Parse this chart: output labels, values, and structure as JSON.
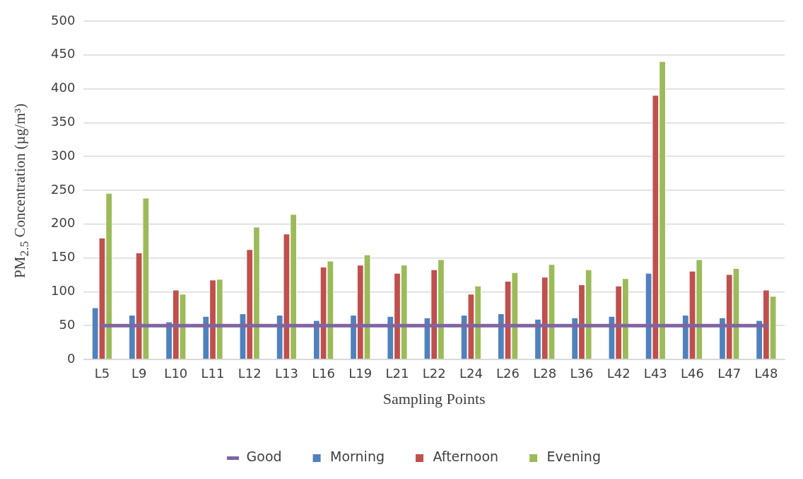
{
  "chart_data": {
    "type": "bar",
    "xlabel": "Sampling Points",
    "ylabel": "PM$_{2.5}$ Concentration (µg/m³)",
    "categories": [
      "L5",
      "L9",
      "L10",
      "L11",
      "L12",
      "L13",
      "L16",
      "L19",
      "L21",
      "L22",
      "L24",
      "L26",
      "L28",
      "L36",
      "L42",
      "L43",
      "L46",
      "L47",
      "L48"
    ],
    "series": [
      {
        "name": "Morning",
        "color": "#4f81bd",
        "values": [
          77,
          66,
          56,
          64,
          68,
          66,
          58,
          66,
          64,
          62,
          66,
          68,
          60,
          62,
          64,
          128,
          66,
          62,
          58
        ]
      },
      {
        "name": "Afternoon",
        "color": "#c0504d",
        "values": [
          180,
          158,
          103,
          118,
          163,
          186,
          137,
          140,
          128,
          133,
          97,
          116,
          122,
          111,
          109,
          391,
          131,
          126,
          103
        ]
      },
      {
        "name": "Evening",
        "color": "#9bbb59",
        "values": [
          246,
          239,
          97,
          119,
          196,
          215,
          146,
          155,
          140,
          148,
          109,
          129,
          141,
          133,
          120,
          441,
          148,
          135,
          94
        ]
      },
      {
        "name": "Good",
        "type": "line",
        "color": "#8064a2",
        "values": [
          50,
          50,
          50,
          50,
          50,
          50,
          50,
          50,
          50,
          50,
          50,
          50,
          50,
          50,
          50,
          50,
          50,
          50,
          50
        ]
      }
    ],
    "ylim": [
      0,
      500
    ],
    "yticks": [
      0,
      50,
      100,
      150,
      200,
      250,
      300,
      350,
      400,
      450,
      500
    ],
    "grid": "y",
    "legend": "bottom",
    "marker": "none"
  }
}
